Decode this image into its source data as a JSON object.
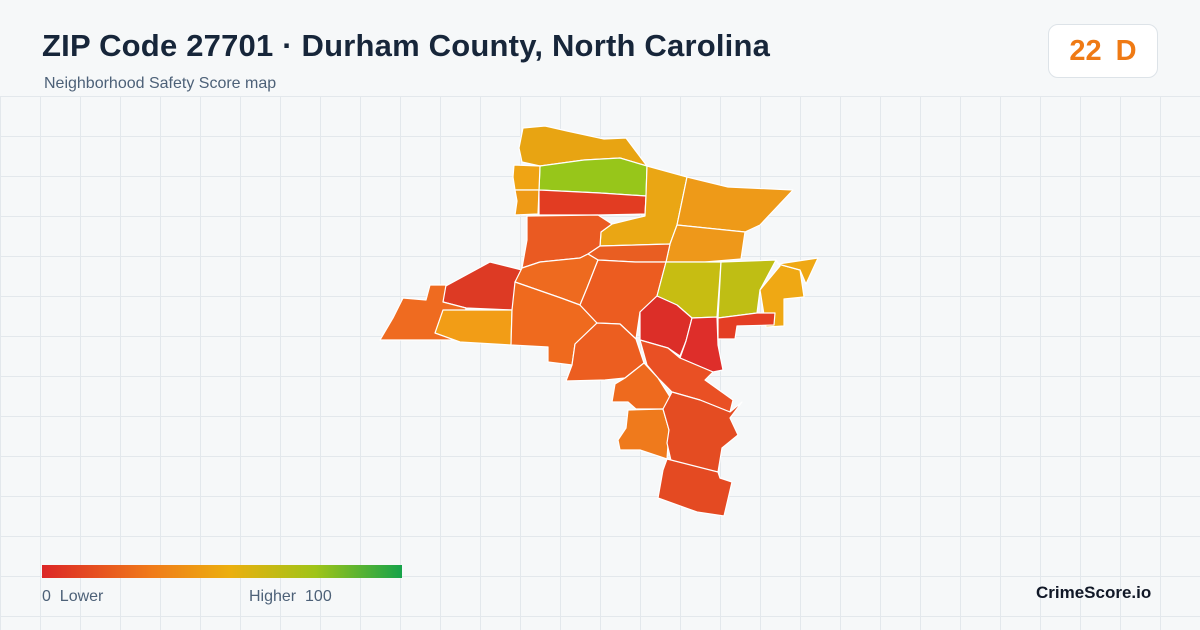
{
  "header": {
    "title": "ZIP Code 27701 · Durham County, North Carolina",
    "subtitle": "Neighborhood Safety Score map"
  },
  "score": {
    "value": "22",
    "grade": "D",
    "color": "#ef7a14"
  },
  "legend": {
    "min_label": "0",
    "min_text": "Lower",
    "max_text": "Higher",
    "max_label": "100",
    "colors": [
      "#dc2626",
      "#f07a1a",
      "#ecaf0f",
      "#9fc418",
      "#16a34a"
    ]
  },
  "brand": {
    "name": "CrimeScore.io"
  },
  "map": {
    "stroke_color": "#ffffff",
    "regions": [
      {
        "id": "north-top",
        "color": "#e8a412"
      },
      {
        "id": "north-green",
        "color": "#97c61a"
      },
      {
        "id": "northwest-small-a",
        "color": "#efa414"
      },
      {
        "id": "northwest-small-b",
        "color": "#ee9a16"
      },
      {
        "id": "north-red-strip",
        "color": "#e23c22"
      },
      {
        "id": "north-corridor",
        "color": "#eaa614"
      },
      {
        "id": "northeast",
        "color": "#ee9a18"
      },
      {
        "id": "northeast-lower",
        "color": "#ee981a"
      },
      {
        "id": "west-central",
        "color": "#ea5a22"
      },
      {
        "id": "center-north",
        "color": "#e95e22"
      },
      {
        "id": "center-west-red",
        "color": "#dd3a24"
      },
      {
        "id": "center-west",
        "color": "#ee6a1f"
      },
      {
        "id": "far-west",
        "color": "#ef6b20"
      },
      {
        "id": "west-southwest",
        "color": "#f29d16"
      },
      {
        "id": "center-east",
        "color": "#ef6a1e"
      },
      {
        "id": "center",
        "color": "#ec5c20"
      },
      {
        "id": "east-olive-a",
        "color": "#c7bd12"
      },
      {
        "id": "east-olive-b",
        "color": "#bfbe14"
      },
      {
        "id": "east-far",
        "color": "#efa814"
      },
      {
        "id": "east-red",
        "color": "#e43e24"
      },
      {
        "id": "east-center-red",
        "color": "#dc2e28"
      },
      {
        "id": "east-center-red-b",
        "color": "#de2e2a"
      },
      {
        "id": "center-south",
        "color": "#ec5e20"
      },
      {
        "id": "south-center",
        "color": "#e95024"
      },
      {
        "id": "south-small-a",
        "color": "#ee6a1e"
      },
      {
        "id": "south-small-b",
        "color": "#ef7a1c"
      },
      {
        "id": "south-east",
        "color": "#e44c22"
      },
      {
        "id": "south",
        "color": "#e44a22"
      },
      {
        "id": "south-tip",
        "color": "#e1441f"
      }
    ]
  }
}
